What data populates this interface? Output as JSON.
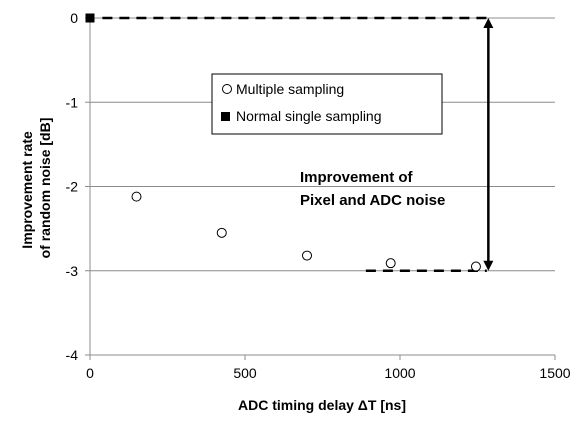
{
  "chart_data": {
    "type": "scatter",
    "xlabel": "ADC timing delay ΔT [ns]",
    "ylabel": [
      "Improvement  rate",
      "of random noise [dB]"
    ],
    "xlim": [
      0,
      1500
    ],
    "ylim": [
      -4,
      0
    ],
    "x_ticks": [
      0,
      500,
      1000,
      1500
    ],
    "y_ticks": [
      0,
      -1,
      -2,
      -3,
      -4
    ],
    "grid": "horizontal",
    "legend_position": "upper-center",
    "series": [
      {
        "name": "Multiple sampling",
        "marker": "open-circle",
        "x": [
          150,
          425,
          700,
          970,
          1245
        ],
        "y": [
          -2.12,
          -2.55,
          -2.82,
          -2.91,
          -2.95
        ]
      },
      {
        "name": "Normal single sampling",
        "marker": "filled-square",
        "x": [
          0
        ],
        "y": [
          0
        ]
      }
    ],
    "reference_lines": [
      {
        "y": 0,
        "x_from": 40,
        "x_to": 1280,
        "style": "dashed"
      },
      {
        "y": -3,
        "x_from": 890,
        "x_to": 1280,
        "style": "dashed"
      }
    ],
    "arrow": {
      "x": 1285,
      "y_from": 0,
      "y_to": -3
    },
    "annotation": [
      "Improvement of",
      "Pixel and ADC noise"
    ]
  }
}
